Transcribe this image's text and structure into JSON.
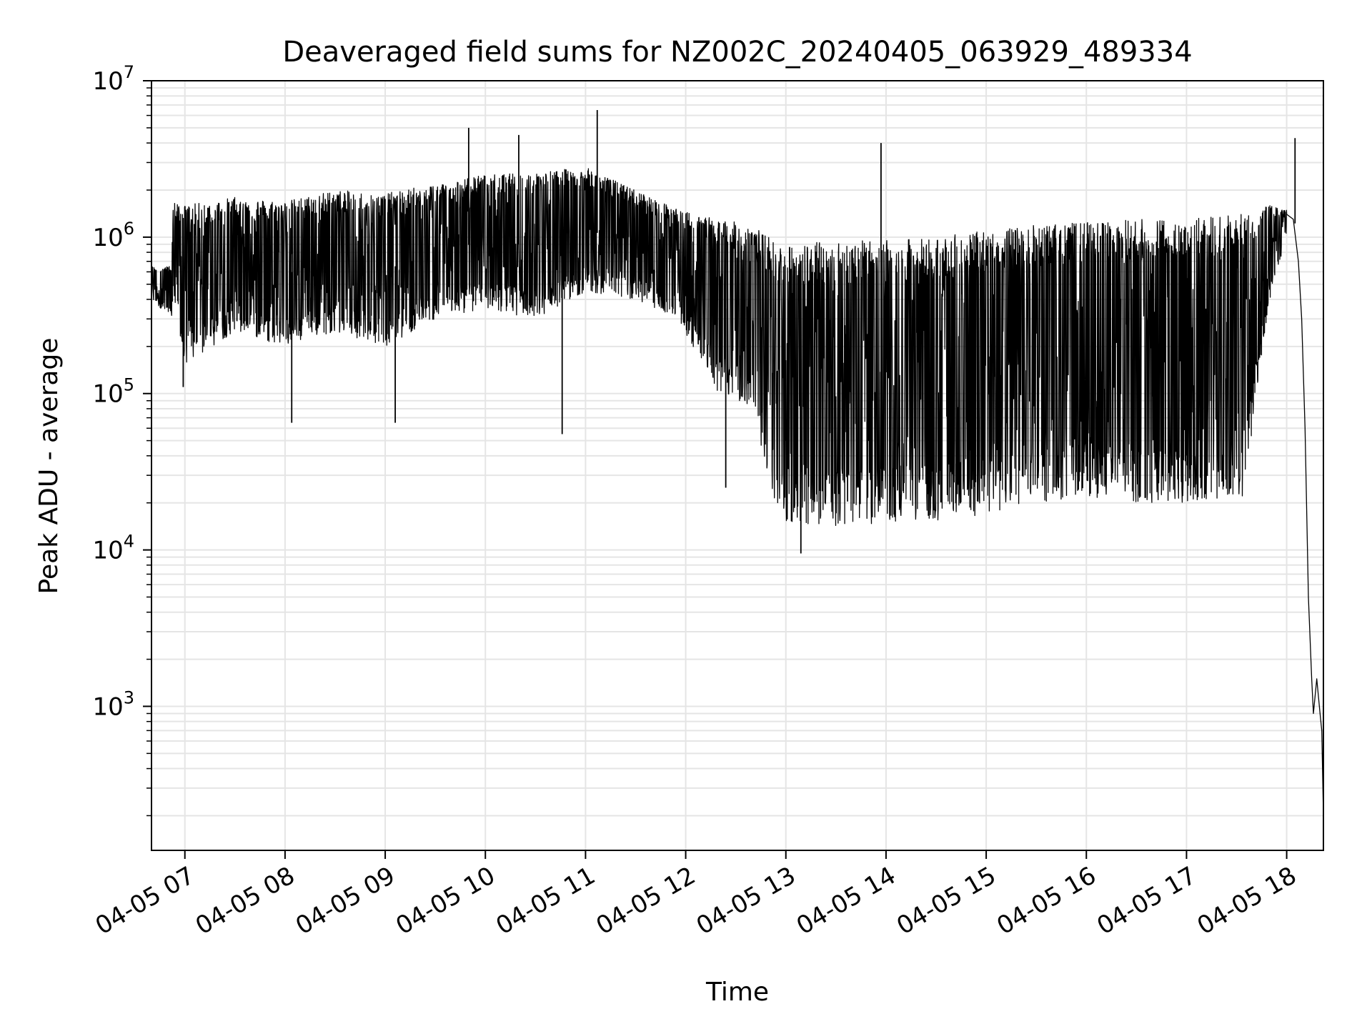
{
  "chart_data": {
    "type": "line",
    "title": "Deaveraged field sums for NZ002C_20240405_063929_489334",
    "xlabel": "Time",
    "ylabel": "Peak ADU - average",
    "yscale": "log",
    "ylim": [
      120,
      10000000
    ],
    "xlim": [
      "2024-04-05 06:40",
      "2024-04-05 18:22"
    ],
    "grid": true,
    "line_color": "#000000",
    "grid_color": "#e5e5e5",
    "x_ticks": [
      {
        "value": "2024-04-05 07:00",
        "label": "04-05 07"
      },
      {
        "value": "2024-04-05 08:00",
        "label": "04-05 08"
      },
      {
        "value": "2024-04-05 09:00",
        "label": "04-05 09"
      },
      {
        "value": "2024-04-05 10:00",
        "label": "04-05 10"
      },
      {
        "value": "2024-04-05 11:00",
        "label": "04-05 11"
      },
      {
        "value": "2024-04-05 12:00",
        "label": "04-05 12"
      },
      {
        "value": "2024-04-05 13:00",
        "label": "04-05 13"
      },
      {
        "value": "2024-04-05 14:00",
        "label": "04-05 14"
      },
      {
        "value": "2024-04-05 15:00",
        "label": "04-05 15"
      },
      {
        "value": "2024-04-05 16:00",
        "label": "04-05 16"
      },
      {
        "value": "2024-04-05 17:00",
        "label": "04-05 17"
      },
      {
        "value": "2024-04-05 18:00",
        "label": "04-05 18"
      }
    ],
    "y_ticks": [
      {
        "value": 1000,
        "base": "10",
        "exp": "3"
      },
      {
        "value": 10000,
        "base": "10",
        "exp": "4"
      },
      {
        "value": 100000,
        "base": "10",
        "exp": "5"
      },
      {
        "value": 1000000,
        "base": "10",
        "exp": "6"
      },
      {
        "value": 10000000,
        "base": "10",
        "exp": "7"
      }
    ],
    "series": [
      {
        "envelope": [
          {
            "t": "06:40",
            "upper": 650000,
            "lower": 400000
          },
          {
            "t": "06:52",
            "upper": 650000,
            "lower": 300000
          },
          {
            "t": "06:53",
            "upper": 1700000,
            "lower": 400000
          },
          {
            "t": "07:00",
            "upper": 1600000,
            "lower": 150000
          },
          {
            "t": "07:30",
            "upper": 1800000,
            "lower": 250000
          },
          {
            "t": "08:00",
            "upper": 1700000,
            "lower": 200000
          },
          {
            "t": "08:30",
            "upper": 2000000,
            "lower": 250000
          },
          {
            "t": "09:00",
            "upper": 1900000,
            "lower": 200000
          },
          {
            "t": "09:30",
            "upper": 2200000,
            "lower": 300000
          },
          {
            "t": "10:00",
            "upper": 2500000,
            "lower": 350000
          },
          {
            "t": "10:30",
            "upper": 2600000,
            "lower": 300000
          },
          {
            "t": "11:00",
            "upper": 2800000,
            "lower": 450000
          },
          {
            "t": "11:30",
            "upper": 2000000,
            "lower": 400000
          },
          {
            "t": "11:55",
            "upper": 1500000,
            "lower": 300000
          },
          {
            "t": "12:20",
            "upper": 1300000,
            "lower": 100000
          },
          {
            "t": "12:40",
            "upper": 1200000,
            "lower": 80000
          },
          {
            "t": "12:55",
            "upper": 900000,
            "lower": 15000
          },
          {
            "t": "13:30",
            "upper": 950000,
            "lower": 14000
          },
          {
            "t": "14:00",
            "upper": 950000,
            "lower": 15000
          },
          {
            "t": "14:30",
            "upper": 1000000,
            "lower": 15000
          },
          {
            "t": "15:00",
            "upper": 1100000,
            "lower": 17000
          },
          {
            "t": "15:30",
            "upper": 1200000,
            "lower": 20000
          },
          {
            "t": "16:00",
            "upper": 1250000,
            "lower": 22000
          },
          {
            "t": "16:30",
            "upper": 1300000,
            "lower": 20000
          },
          {
            "t": "17:00",
            "upper": 1350000,
            "lower": 20000
          },
          {
            "t": "17:35",
            "upper": 1400000,
            "lower": 22000
          },
          {
            "t": "17:40",
            "upper": 1500000,
            "lower": 70000
          },
          {
            "t": "17:50",
            "upper": 1600000,
            "lower": 400000
          },
          {
            "t": "18:00",
            "upper": 1500000,
            "lower": 1000000
          }
        ],
        "tail": [
          {
            "t": "18:00",
            "y": 1400000
          },
          {
            "t": "18:04",
            "y": 1300000
          },
          {
            "t": "18:07",
            "y": 700000
          },
          {
            "t": "18:09",
            "y": 300000
          },
          {
            "t": "18:11",
            "y": 60000
          },
          {
            "t": "18:13",
            "y": 5000
          },
          {
            "t": "18:15",
            "y": 1500
          },
          {
            "t": "18:16",
            "y": 900
          },
          {
            "t": "18:18",
            "y": 1500
          },
          {
            "t": "18:20",
            "y": 900
          },
          {
            "t": "18:21",
            "y": 700
          },
          {
            "t": "18:22",
            "y": 200
          }
        ],
        "spikes": [
          {
            "t": "06:59",
            "y": 110000
          },
          {
            "t": "08:04",
            "y": 65000
          },
          {
            "t": "09:06",
            "y": 65000
          },
          {
            "t": "09:50",
            "y": 5000000
          },
          {
            "t": "10:20",
            "y": 4500000
          },
          {
            "t": "10:46",
            "y": 55000
          },
          {
            "t": "11:07",
            "y": 6500000
          },
          {
            "t": "12:24",
            "y": 25000
          },
          {
            "t": "13:09",
            "y": 9500
          },
          {
            "t": "13:57",
            "y": 4000000
          },
          {
            "t": "18:05",
            "y": 4300000
          }
        ]
      }
    ]
  }
}
